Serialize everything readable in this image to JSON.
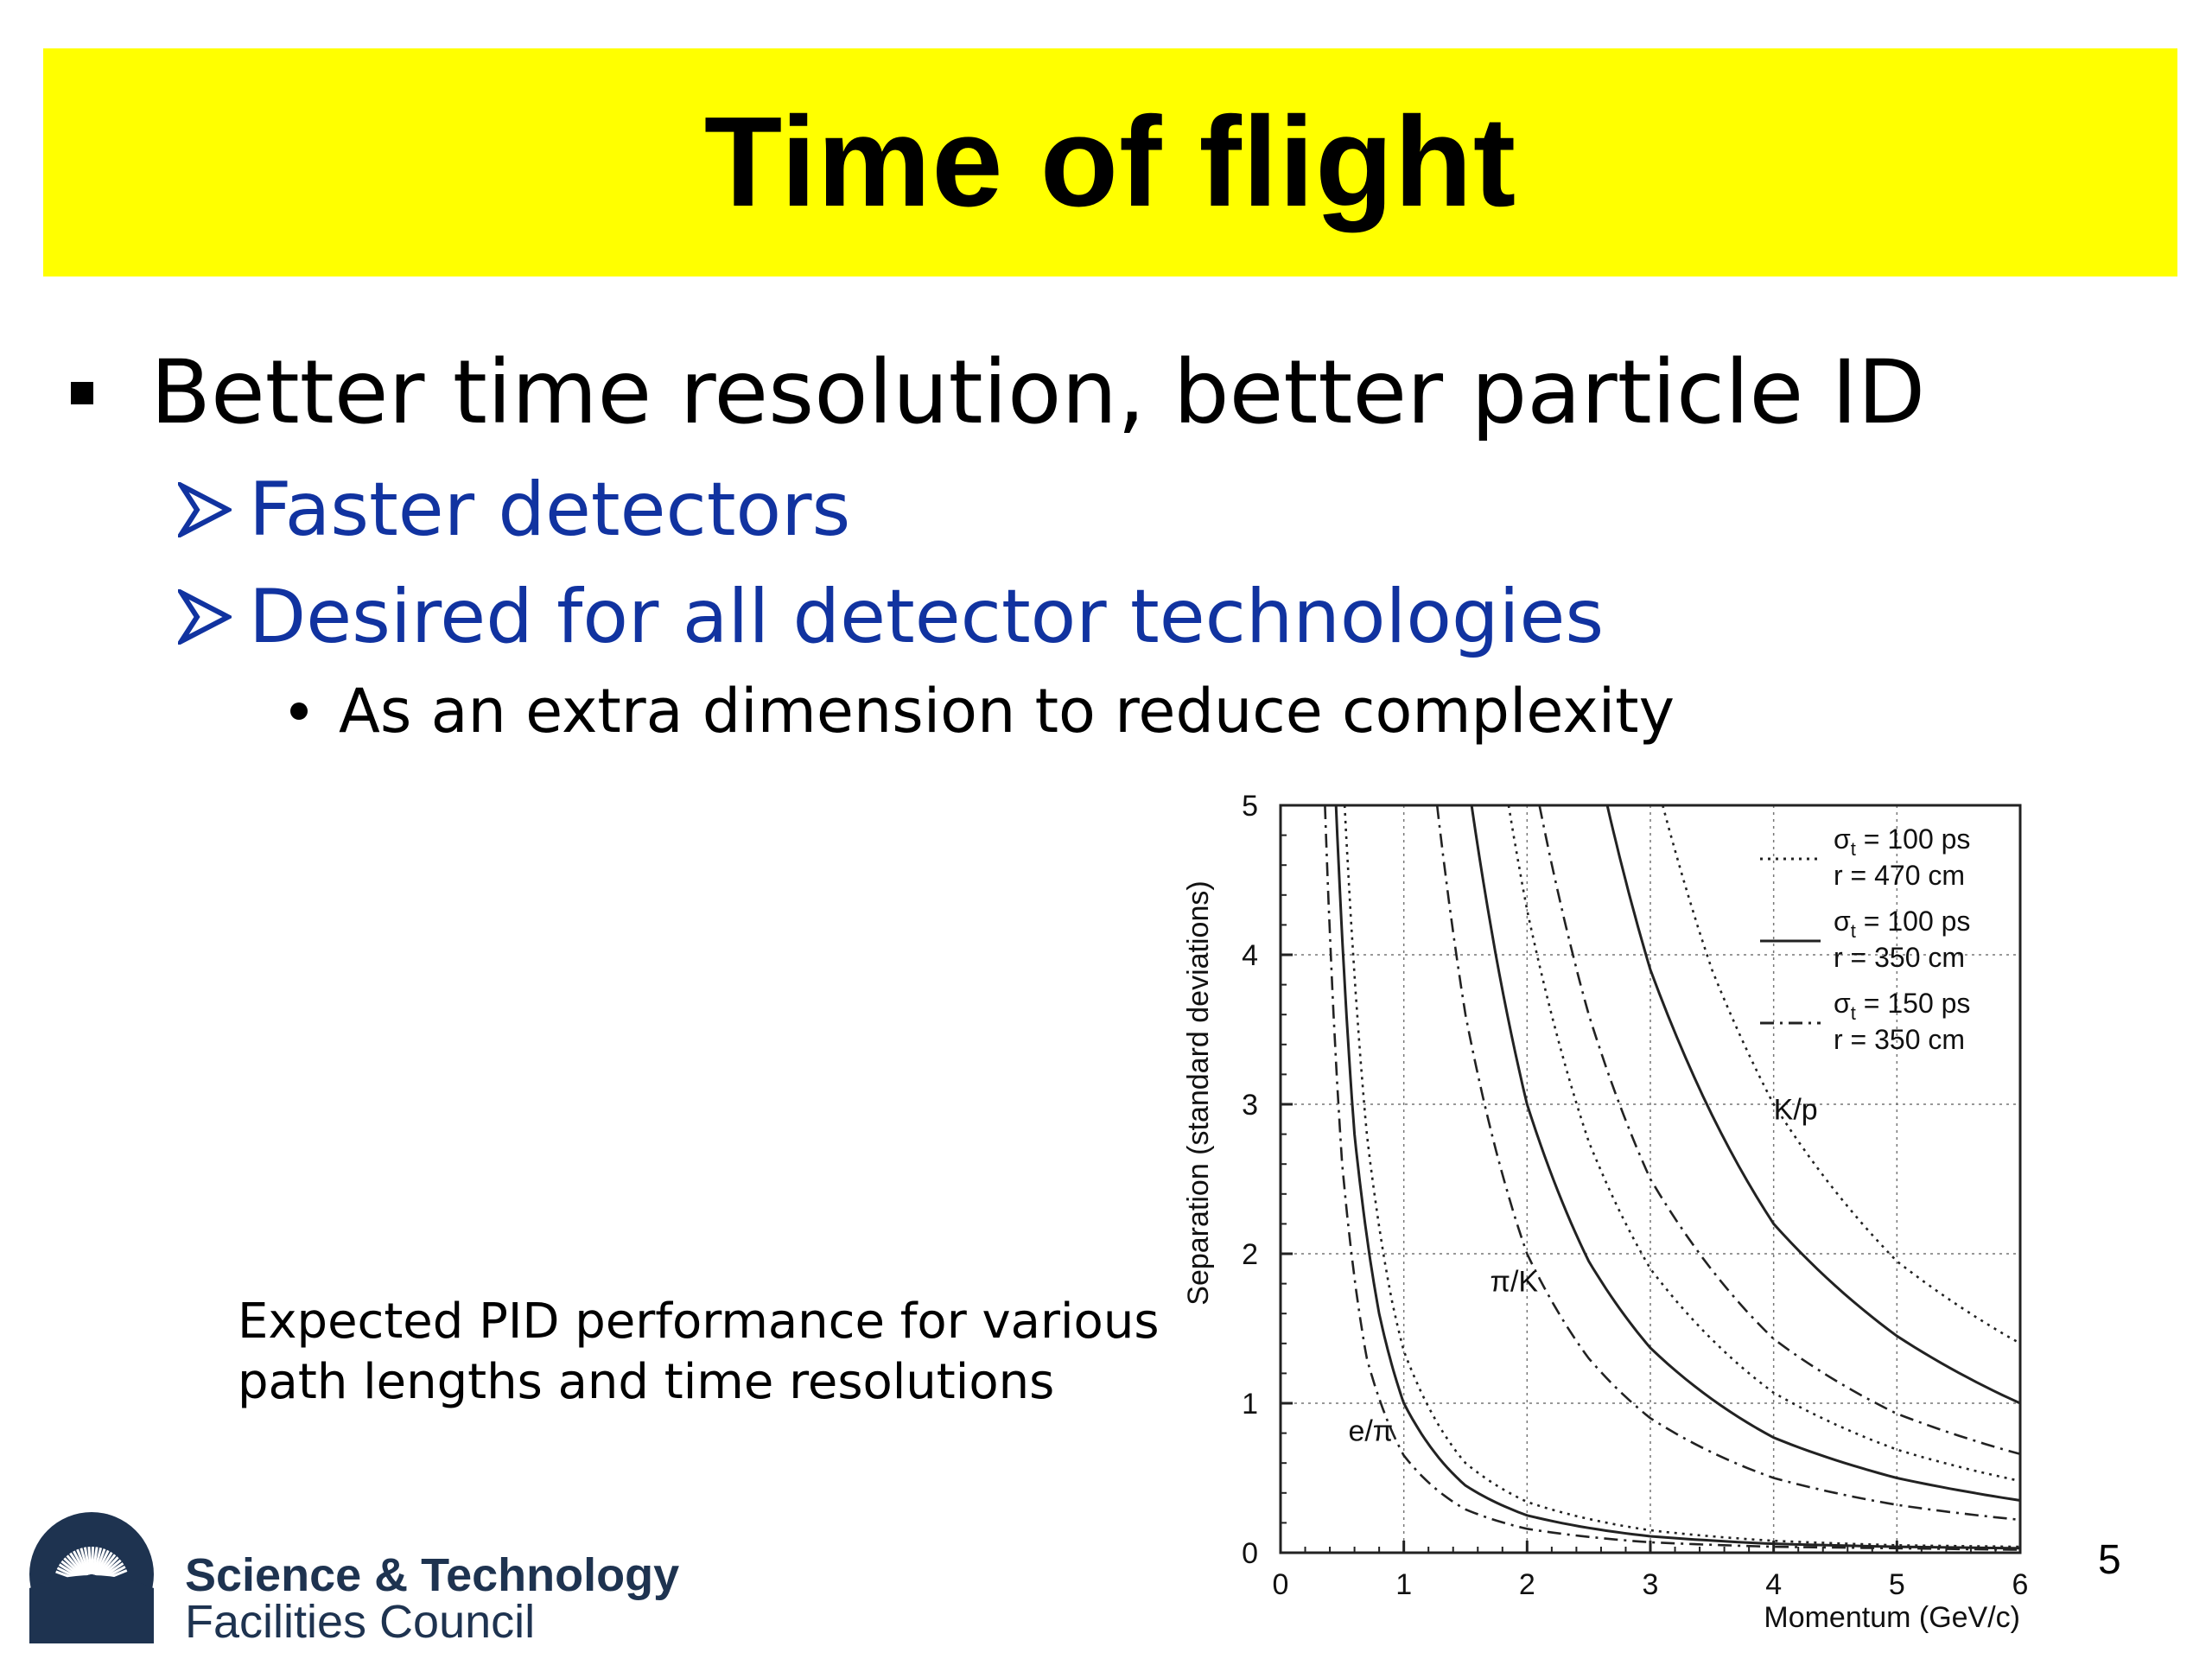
{
  "slide": {
    "title": "Time of flight",
    "bullet1": "Better time resolution, better particle ID",
    "sub1": "Faster detectors",
    "sub2": "Desired for all detector technologies",
    "subsub1": "As an extra dimension to reduce complexity",
    "caption_line1": "Expected PID performance for various",
    "caption_line2": "path lengths and time resolutions",
    "logo_line1": "Science & Technology",
    "logo_line2": "Facilities Council",
    "page_number": "5",
    "title_bg": "#ffff00",
    "sub_color": "#1133a0"
  },
  "chart_data": {
    "type": "line",
    "xlabel": "Momentum (GeV/c)",
    "ylabel": "Separation (standard deviations)",
    "xlim": [
      0,
      6
    ],
    "ylim": [
      0,
      5
    ],
    "xticks": [
      0,
      1,
      2,
      3,
      4,
      5,
      6
    ],
    "yticks": [
      0,
      1,
      2,
      3,
      4,
      5
    ],
    "grid": true,
    "legend": {
      "placement": "top-right",
      "entries": [
        {
          "style": "dotted",
          "sigma": "σ",
          "sub": "t",
          "line1": " = 100 ps",
          "line2": "r   = 470 cm"
        },
        {
          "style": "solid",
          "sigma": "σ",
          "sub": "t",
          "line1": " = 100 ps",
          "line2": "r   = 350 cm"
        },
        {
          "style": "dashdot",
          "sigma": "σ",
          "sub": "t",
          "line1": " = 150 ps",
          "line2": "r   = 350 cm"
        }
      ]
    },
    "annotations": [
      {
        "text": "e/π",
        "x": 0.55,
        "y": 0.75
      },
      {
        "text": "π/K",
        "x": 1.7,
        "y": 1.75
      },
      {
        "text": "K/p",
        "x": 4.0,
        "y": 2.9
      }
    ],
    "series": [
      {
        "group": "e/π",
        "style": "dashdot",
        "x": [
          0.36,
          0.5,
          0.7,
          1.0,
          1.5,
          2.0,
          3.0,
          4.0,
          5.0,
          6.0
        ],
        "y": [
          5.0,
          2.6,
          1.3,
          0.65,
          0.29,
          0.16,
          0.07,
          0.04,
          0.03,
          0.02
        ]
      },
      {
        "group": "e/π",
        "style": "solid",
        "x": [
          0.45,
          0.6,
          0.8,
          1.0,
          1.5,
          2.0,
          3.0,
          4.0,
          5.0,
          6.0
        ],
        "y": [
          5.0,
          2.8,
          1.6,
          1.0,
          0.45,
          0.25,
          0.11,
          0.06,
          0.04,
          0.03
        ]
      },
      {
        "group": "e/π",
        "style": "dotted",
        "x": [
          0.52,
          0.7,
          0.9,
          1.0,
          1.5,
          2.0,
          3.0,
          4.0,
          5.0,
          6.0
        ],
        "y": [
          5.0,
          2.8,
          1.7,
          1.35,
          0.6,
          0.34,
          0.15,
          0.08,
          0.05,
          0.04
        ]
      },
      {
        "group": "π/K",
        "style": "dashdot",
        "x": [
          1.27,
          1.5,
          2.0,
          2.5,
          3.0,
          4.0,
          5.0,
          6.0
        ],
        "y": [
          5.0,
          3.6,
          2.0,
          1.3,
          0.9,
          0.5,
          0.32,
          0.22
        ]
      },
      {
        "group": "π/K",
        "style": "solid",
        "x": [
          1.55,
          2.0,
          2.5,
          3.0,
          4.0,
          5.0,
          6.0
        ],
        "y": [
          5.0,
          3.0,
          1.95,
          1.37,
          0.77,
          0.5,
          0.35
        ]
      },
      {
        "group": "π/K",
        "style": "dotted",
        "x": [
          1.85,
          2.0,
          2.5,
          3.0,
          4.0,
          5.0,
          6.0
        ],
        "y": [
          5.0,
          4.3,
          2.75,
          1.9,
          1.07,
          0.69,
          0.48
        ]
      },
      {
        "group": "K/p",
        "style": "dashdot",
        "x": [
          2.1,
          2.5,
          3.0,
          4.0,
          5.0,
          6.0
        ],
        "y": [
          5.0,
          3.6,
          2.5,
          1.43,
          0.93,
          0.66
        ]
      },
      {
        "group": "K/p",
        "style": "solid",
        "x": [
          2.65,
          3.0,
          4.0,
          5.0,
          6.0
        ],
        "y": [
          5.0,
          3.9,
          2.2,
          1.45,
          1.0
        ]
      },
      {
        "group": "K/p",
        "style": "dotted",
        "x": [
          3.1,
          3.5,
          4.0,
          5.0,
          6.0
        ],
        "y": [
          5.0,
          3.9,
          3.0,
          1.95,
          1.4
        ]
      }
    ]
  }
}
